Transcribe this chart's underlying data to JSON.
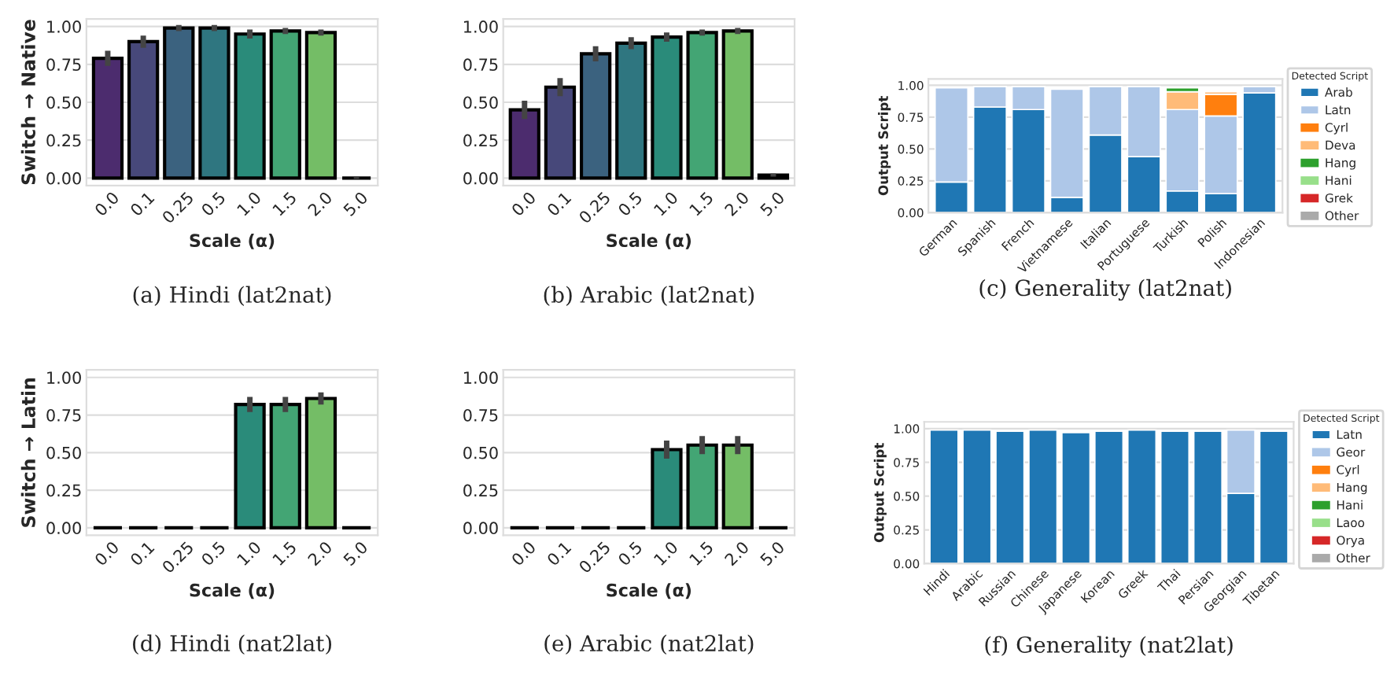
{
  "chart_data": [
    {
      "type": "bar",
      "title": "(a) Hindi (lat2nat)",
      "xlabel": "Scale (α)",
      "ylabel": "Switch → Native",
      "categories": [
        "0.0",
        "0.1",
        "0.25",
        "0.5",
        "1.0",
        "1.5",
        "2.0",
        "5.0"
      ],
      "values": [
        0.79,
        0.9,
        0.99,
        0.99,
        0.95,
        0.97,
        0.96,
        0.0
      ],
      "errors": [
        0.05,
        0.04,
        0.02,
        0.02,
        0.03,
        0.02,
        0.02,
        0.005
      ],
      "colors": [
        "#4c2c6e",
        "#47487a",
        "#3b627f",
        "#2f7680",
        "#2a8b7a",
        "#43a574",
        "#74bd66",
        "#000000"
      ],
      "ylim": [
        -0.05,
        1.05
      ],
      "yticks": [
        {
          "value": 0,
          "label": "0.00"
        },
        {
          "value": 0.25,
          "label": "0.25"
        },
        {
          "value": 0.5,
          "label": "0.50"
        },
        {
          "value": 0.75,
          "label": "0.75"
        },
        {
          "value": 1,
          "label": "1.00"
        }
      ],
      "grid": "y"
    },
    {
      "type": "bar",
      "title": "(b) Arabic (lat2nat)",
      "xlabel": "Scale (α)",
      "categories": [
        "0.0",
        "0.1",
        "0.25",
        "0.5",
        "1.0",
        "1.5",
        "2.0",
        "5.0"
      ],
      "values": [
        0.45,
        0.6,
        0.82,
        0.89,
        0.93,
        0.96,
        0.97,
        0.02
      ],
      "errors": [
        0.06,
        0.06,
        0.05,
        0.04,
        0.03,
        0.02,
        0.02,
        0.01
      ],
      "colors": [
        "#4c2c6e",
        "#47487a",
        "#3b627f",
        "#2f7680",
        "#2a8b7a",
        "#43a574",
        "#74bd66",
        "#b3cc5e"
      ],
      "ylim": [
        -0.05,
        1.05
      ],
      "yticks": [
        {
          "value": 0,
          "label": "0.00"
        },
        {
          "value": 0.25,
          "label": "0.25"
        },
        {
          "value": 0.5,
          "label": "0.50"
        },
        {
          "value": 0.75,
          "label": "0.75"
        },
        {
          "value": 1,
          "label": "1.00"
        }
      ],
      "grid": "y"
    },
    {
      "type": "bar",
      "stacked": true,
      "title": "(c) Generality (lat2nat)",
      "ylabel": "Output Script",
      "legend_title": "Detected Script",
      "legend": "right",
      "categories": [
        "German",
        "Spanish",
        "French",
        "Vietnamese",
        "Italian",
        "Portuguese",
        "Turkish",
        "Polish",
        "Indonesian"
      ],
      "series": [
        {
          "name": "Arab",
          "color": "#1f77b4",
          "values": [
            0.24,
            0.83,
            0.81,
            0.12,
            0.61,
            0.44,
            0.17,
            0.15,
            0.94
          ]
        },
        {
          "name": "Latn",
          "color": "#aec7e8",
          "values": [
            0.74,
            0.16,
            0.18,
            0.85,
            0.38,
            0.55,
            0.64,
            0.61,
            0.05
          ]
        },
        {
          "name": "Cyrl",
          "color": "#ff7f0e",
          "values": [
            0,
            0,
            0,
            0,
            0,
            0,
            0,
            0.17,
            0
          ]
        },
        {
          "name": "Deva",
          "color": "#ffbb78",
          "values": [
            0,
            0,
            0,
            0,
            0,
            0,
            0.14,
            0.02,
            0
          ]
        },
        {
          "name": "Hang",
          "color": "#2ca02c",
          "values": [
            0,
            0,
            0,
            0,
            0,
            0,
            0.03,
            0,
            0
          ]
        },
        {
          "name": "Hani",
          "color": "#98df8a",
          "values": [
            0,
            0,
            0,
            0,
            0,
            0,
            0,
            0,
            0
          ]
        },
        {
          "name": "Grek",
          "color": "#d62728",
          "values": [
            0,
            0,
            0,
            0,
            0,
            0,
            0,
            0,
            0
          ]
        },
        {
          "name": "Other",
          "color": "#aaaaaa",
          "values": [
            0,
            0,
            0,
            0,
            0,
            0,
            0,
            0,
            0
          ]
        }
      ],
      "ylim": [
        0,
        1.05
      ],
      "yticks": [
        {
          "value": 0,
          "label": "0.00"
        },
        {
          "value": 0.25,
          "label": "0.25"
        },
        {
          "value": 0.5,
          "label": "0.50"
        },
        {
          "value": 0.75,
          "label": "0.75"
        },
        {
          "value": 1,
          "label": "1.00"
        }
      ],
      "grid": "y"
    },
    {
      "type": "bar",
      "title": "(d) Hindi (nat2lat)",
      "xlabel": "Scale (α)",
      "ylabel": "Switch → Latin",
      "categories": [
        "0.0",
        "0.1",
        "0.25",
        "0.5",
        "1.0",
        "1.5",
        "2.0",
        "5.0"
      ],
      "values": [
        0.0,
        0.0,
        0.0,
        0.0,
        0.82,
        0.82,
        0.86,
        0.0
      ],
      "errors": [
        null,
        null,
        null,
        null,
        0.05,
        0.05,
        0.04,
        null
      ],
      "colors": [
        "#000000",
        "#000000",
        "#000000",
        "#000000",
        "#2a8b7a",
        "#43a574",
        "#74bd66",
        "#000000"
      ],
      "ylim": [
        -0.05,
        1.05
      ],
      "yticks": [
        {
          "value": 0,
          "label": "0.00"
        },
        {
          "value": 0.25,
          "label": "0.25"
        },
        {
          "value": 0.5,
          "label": "0.50"
        },
        {
          "value": 0.75,
          "label": "0.75"
        },
        {
          "value": 1,
          "label": "1.00"
        }
      ],
      "grid": "y"
    },
    {
      "type": "bar",
      "title": "(e) Arabic (nat2lat)",
      "xlabel": "Scale (α)",
      "categories": [
        "0.0",
        "0.1",
        "0.25",
        "0.5",
        "1.0",
        "1.5",
        "2.0",
        "5.0"
      ],
      "values": [
        0.0,
        0.0,
        0.0,
        0.0,
        0.52,
        0.55,
        0.55,
        0.0
      ],
      "errors": [
        null,
        null,
        null,
        null,
        0.06,
        0.06,
        0.06,
        null
      ],
      "colors": [
        "#000000",
        "#000000",
        "#000000",
        "#000000",
        "#2a8b7a",
        "#43a574",
        "#74bd66",
        "#000000"
      ],
      "ylim": [
        -0.05,
        1.05
      ],
      "yticks": [
        {
          "value": 0,
          "label": "0.00"
        },
        {
          "value": 0.25,
          "label": "0.25"
        },
        {
          "value": 0.5,
          "label": "0.50"
        },
        {
          "value": 0.75,
          "label": "0.75"
        },
        {
          "value": 1,
          "label": "1.00"
        }
      ],
      "grid": "y"
    },
    {
      "type": "bar",
      "stacked": true,
      "title": "(f) Generality (nat2lat)",
      "ylabel": "Output Script",
      "legend_title": "Detected Script",
      "legend": "right",
      "categories": [
        "Hindi",
        "Arabic",
        "Russian",
        "Chinese",
        "Japanese",
        "Korean",
        "Greek",
        "Thai",
        "Persian",
        "Georgian",
        "Tibetan"
      ],
      "series": [
        {
          "name": "Latn",
          "color": "#1f77b4",
          "values": [
            0.99,
            0.99,
            0.98,
            0.99,
            0.97,
            0.98,
            0.99,
            0.98,
            0.98,
            0.52,
            0.98
          ]
        },
        {
          "name": "Geor",
          "color": "#aec7e8",
          "values": [
            0,
            0,
            0,
            0,
            0,
            0,
            0,
            0,
            0,
            0.47,
            0
          ]
        },
        {
          "name": "Cyrl",
          "color": "#ff7f0e",
          "values": [
            0,
            0,
            0,
            0,
            0,
            0,
            0,
            0,
            0,
            0,
            0
          ]
        },
        {
          "name": "Hang",
          "color": "#ffbb78",
          "values": [
            0,
            0,
            0,
            0,
            0,
            0,
            0,
            0,
            0,
            0,
            0
          ]
        },
        {
          "name": "Hani",
          "color": "#2ca02c",
          "values": [
            0,
            0,
            0,
            0,
            0,
            0,
            0,
            0,
            0,
            0,
            0
          ]
        },
        {
          "name": "Laoo",
          "color": "#98df8a",
          "values": [
            0,
            0,
            0,
            0,
            0,
            0,
            0,
            0,
            0,
            0,
            0
          ]
        },
        {
          "name": "Orya",
          "color": "#d62728",
          "values": [
            0,
            0,
            0,
            0,
            0,
            0,
            0,
            0,
            0,
            0,
            0
          ]
        },
        {
          "name": "Other",
          "color": "#aaaaaa",
          "values": [
            0,
            0,
            0,
            0,
            0,
            0,
            0,
            0,
            0,
            0,
            0
          ]
        }
      ],
      "ylim": [
        0,
        1.05
      ],
      "yticks": [
        {
          "value": 0,
          "label": "0.00"
        },
        {
          "value": 0.25,
          "label": "0.25"
        },
        {
          "value": 0.5,
          "label": "0.50"
        },
        {
          "value": 0.75,
          "label": "0.75"
        },
        {
          "value": 1,
          "label": "1.00"
        }
      ],
      "grid": "y"
    }
  ]
}
